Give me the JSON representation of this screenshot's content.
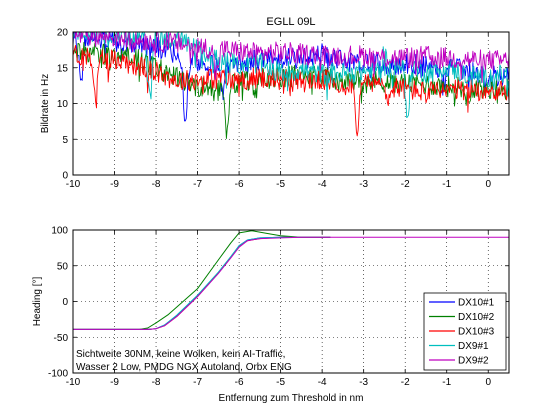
{
  "figure_note": "Sichtweite 30NM, keine Wolken, kein AI-Traffic, / Wasser 2 Low, PMDG NGX Autoland, Orbx ENG",
  "chart_data": [
    {
      "type": "line",
      "title": "EGLL 09L",
      "xlabel": "",
      "ylabel": "Bildrate in Hz",
      "xlim": [
        -10,
        0.5
      ],
      "ylim": [
        0,
        20
      ],
      "xticks": [
        -10,
        -9,
        -8,
        -7,
        -6,
        -5,
        -4,
        -3,
        -2,
        -1,
        0
      ],
      "yticks": [
        0,
        5,
        10,
        15,
        20
      ],
      "grid": true,
      "series": [
        {
          "name": "DX10#1",
          "color": "#0000ff",
          "x": [
            -10,
            -9.5,
            -9,
            -8.5,
            -8,
            -7.5,
            -7,
            -6.5,
            -6,
            -5.5,
            -5,
            -4.5,
            -4,
            -3.5,
            -3,
            -2.5,
            -2,
            -1.5,
            -1,
            -0.5,
            0,
            0.5
          ],
          "y": [
            19.5,
            19.2,
            18.8,
            18.3,
            17.8,
            17.2,
            15.6,
            15.3,
            16.0,
            16.1,
            16.4,
            16.2,
            16.9,
            15.9,
            15.7,
            15.3,
            15.6,
            15.2,
            15.1,
            14.6,
            13.9,
            13.7
          ],
          "dips": [
            {
              "x": -9.8,
              "y": 13.8
            },
            {
              "x": -7.3,
              "y": 8.0
            },
            {
              "x": -6.4,
              "y": 11.0
            },
            {
              "x": -1.1,
              "y": 12.5
            }
          ]
        },
        {
          "name": "DX10#2",
          "color": "#008000",
          "x": [
            -10,
            -9.5,
            -9,
            -8.5,
            -8,
            -7.5,
            -7,
            -6.5,
            -6,
            -5.5,
            -5,
            -4.5,
            -4,
            -3.5,
            -3,
            -2.5,
            -2,
            -1.5,
            -1,
            -0.5,
            0,
            0.5
          ],
          "y": [
            17.0,
            17.1,
            16.8,
            16.3,
            15.0,
            13.6,
            12.4,
            11.7,
            13.1,
            13.4,
            13.7,
            13.9,
            13.8,
            13.1,
            13.3,
            13.0,
            12.8,
            12.7,
            12.4,
            12.2,
            12.1,
            12.0
          ],
          "dips": [
            {
              "x": -6.3,
              "y": 5.8
            },
            {
              "x": -5.6,
              "y": 11.3
            },
            {
              "x": -0.5,
              "y": 10.8
            }
          ]
        },
        {
          "name": "DX10#3",
          "color": "#ff0000",
          "x": [
            -10,
            -9.5,
            -9,
            -8.5,
            -8,
            -7.5,
            -7,
            -6.5,
            -6,
            -5.5,
            -5,
            -4.5,
            -4,
            -3.5,
            -3,
            -2.5,
            -2,
            -1.5,
            -1,
            -0.5,
            0,
            0.5
          ],
          "y": [
            16.9,
            16.5,
            16.2,
            15.4,
            14.4,
            13.2,
            13.3,
            13.6,
            13.2,
            13.7,
            13.4,
            13.0,
            13.4,
            12.6,
            13.0,
            12.6,
            12.0,
            11.6,
            11.7,
            11.9,
            11.8,
            11.6
          ],
          "dips": [
            {
              "x": -9.45,
              "y": 11.2
            },
            {
              "x": -3.15,
              "y": 6.7
            },
            {
              "x": -2.4,
              "y": 10.5
            }
          ]
        },
        {
          "name": "DX9#1",
          "color": "#00bfbf",
          "x": [
            -10,
            -9.5,
            -9,
            -8.5,
            -8,
            -7.5,
            -7,
            -6.5,
            -6,
            -5.5,
            -5,
            -4.5,
            -4,
            -3.5,
            -3,
            -2.5,
            -2,
            -1.5,
            -1,
            -0.5,
            0,
            0.5
          ],
          "y": [
            19.9,
            19.9,
            19.9,
            19.5,
            19.3,
            19.0,
            17.5,
            16.1,
            15.5,
            15.7,
            14.4,
            14.7,
            14.2,
            14.2,
            14.5,
            14.6,
            15.7,
            14.3,
            15.2,
            13.9,
            13.8,
            14.0
          ],
          "dips": [
            {
              "x": -8.15,
              "y": 10.3
            },
            {
              "x": -1.95,
              "y": 8.0
            },
            {
              "x": -2.5,
              "y": 16.8
            }
          ]
        },
        {
          "name": "DX9#2",
          "color": "#bf00bf",
          "x": [
            -10,
            -9.5,
            -9,
            -8.5,
            -8,
            -7.5,
            -7,
            -6.5,
            -6,
            -5.5,
            -5,
            -4.5,
            -4,
            -3.5,
            -3,
            -2.5,
            -2,
            -1.5,
            -1,
            -0.5,
            0,
            0.5
          ],
          "y": [
            19.6,
            19.5,
            19.3,
            19.0,
            18.7,
            18.4,
            18.0,
            17.6,
            17.3,
            17.0,
            17.2,
            16.9,
            16.8,
            16.7,
            16.7,
            16.4,
            16.4,
            16.6,
            16.4,
            16.2,
            16.0,
            16.0
          ],
          "dips": [
            {
              "x": -6.55,
              "y": 14.0
            }
          ]
        }
      ]
    },
    {
      "type": "line",
      "title": "",
      "xlabel": "Entfernung zum Threshold in nm",
      "ylabel": "Heading [°]",
      "xlim": [
        -10,
        0.5
      ],
      "ylim": [
        -100,
        100
      ],
      "xticks": [
        -10,
        -9,
        -8,
        -7,
        -6,
        -5,
        -4,
        -3,
        -2,
        -1,
        0
      ],
      "yticks": [
        -100,
        -50,
        0,
        50,
        100
      ],
      "grid": true,
      "legend": "lower-right",
      "series": [
        {
          "name": "DX10#1",
          "color": "#0000ff",
          "x": [
            -10,
            -8.2,
            -8.0,
            -7.8,
            -7.5,
            -7.0,
            -6.5,
            -6.2,
            -6.0,
            -5.8,
            -5.5,
            -5.0,
            -4.5,
            -3.8
          ],
          "y": [
            -39,
            -39,
            -38,
            -33,
            -20,
            8,
            40,
            62,
            78,
            86,
            89,
            90,
            90,
            90
          ]
        },
        {
          "name": "DX10#2",
          "color": "#008000",
          "x": [
            -10,
            -8.4,
            -8.2,
            -8.0,
            -7.7,
            -7.0,
            -6.5,
            -6.2,
            -6.0,
            -5.7,
            -5.3,
            -5.0,
            -4.5,
            -3.8
          ],
          "y": [
            -39,
            -39,
            -37,
            -30,
            -18,
            18,
            58,
            82,
            96,
            99,
            95,
            92,
            90,
            90
          ]
        },
        {
          "name": "DX10#3",
          "color": "#ff0000",
          "x": [
            -10,
            -8.2,
            -8.0,
            -7.8,
            -7.5,
            -7.0,
            -6.5,
            -6.2,
            -6.0,
            -5.8,
            -5.5,
            -5.0,
            -4.5,
            -3.8
          ],
          "y": [
            -39,
            -39,
            -38,
            -34,
            -21,
            7,
            40,
            62,
            77,
            85,
            88,
            90,
            90,
            90
          ]
        },
        {
          "name": "DX9#1",
          "color": "#00bfbf",
          "x": [
            -10,
            -8.2,
            -8.0,
            -7.8,
            -7.5,
            -7.0,
            -6.5,
            -6.2,
            -6.0,
            -5.8,
            -5.5,
            -5.0,
            -4.5,
            -3.8
          ],
          "y": [
            -39,
            -39,
            -38,
            -33,
            -19,
            9,
            41,
            63,
            78,
            86,
            89,
            90,
            90,
            90
          ]
        },
        {
          "name": "DX9#2",
          "color": "#bf00bf",
          "x": [
            -10,
            -8.2,
            -8.0,
            -7.8,
            -7.5,
            -7.0,
            -6.5,
            -6.2,
            -6.0,
            -5.8,
            -5.5,
            -5.0,
            -4.5,
            -3.5,
            -2.0,
            0.5
          ],
          "y": [
            -39,
            -39,
            -38,
            -34,
            -21,
            7,
            39,
            61,
            76,
            85,
            88,
            89,
            90,
            90,
            90,
            90
          ]
        }
      ]
    }
  ]
}
